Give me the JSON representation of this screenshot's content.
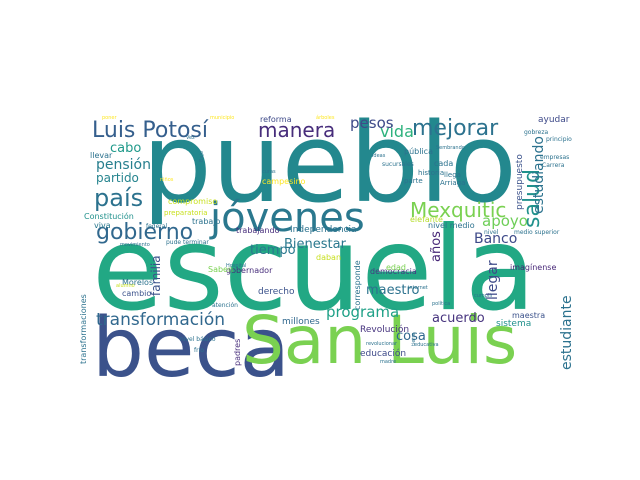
{
  "words": [
    {
      "text": "pueblo",
      "color": "#23888e",
      "orientation": "horizontal"
    },
    {
      "text": "escuela",
      "color": "#22a884",
      "orientation": "horizontal"
    },
    {
      "text": "beca",
      "color": "#3b528b",
      "orientation": "horizontal"
    },
    {
      "text": "San Luis",
      "color": "#7ad151",
      "orientation": "horizontal"
    },
    {
      "text": "jóvenes",
      "color": "#2a788e",
      "orientation": "horizontal"
    },
    {
      "text": "Luis Potosí",
      "color": "#355f8d",
      "orientation": "horizontal"
    },
    {
      "text": "manera",
      "color": "#472d7b",
      "orientation": "horizontal"
    },
    {
      "text": "mejorar",
      "color": "#2c728e",
      "orientation": "horizontal"
    },
    {
      "text": "gobierno",
      "color": "#31688e",
      "orientation": "horizontal"
    },
    {
      "text": "Mexquitic",
      "color": "#7ad151",
      "orientation": "horizontal"
    },
    {
      "text": "salud",
      "color": "#21918c",
      "orientation": "vertical"
    },
    {
      "text": "país",
      "color": "#2c728e",
      "orientation": "horizontal"
    },
    {
      "text": "transformación",
      "color": "#31688e",
      "orientation": "horizontal"
    },
    {
      "text": "programa",
      "color": "#1fa187",
      "orientation": "horizontal"
    },
    {
      "text": "Bienestar",
      "color": "#2a788e",
      "orientation": "horizontal"
    },
    {
      "text": "vida",
      "color": "#2db27d",
      "orientation": "horizontal"
    },
    {
      "text": "pesos",
      "color": "#3e4a89",
      "orientation": "horizontal"
    },
    {
      "text": "apoyo",
      "color": "#6ece58",
      "orientation": "horizontal"
    },
    {
      "text": "pensión",
      "color": "#277f8e",
      "orientation": "horizontal"
    },
    {
      "text": "partido",
      "color": "#25848e",
      "orientation": "horizontal"
    },
    {
      "text": "cabo",
      "color": "#1f998a",
      "orientation": "horizontal"
    },
    {
      "text": "Banco",
      "color": "#3e4a89",
      "orientation": "horizontal"
    },
    {
      "text": "estudiando",
      "color": "#2c728e",
      "orientation": "vertical"
    },
    {
      "text": "estudiante",
      "color": "#2c728e",
      "orientation": "vertical"
    },
    {
      "text": "años",
      "color": "#482878",
      "orientation": "vertical"
    },
    {
      "text": "llegar",
      "color": "#3e4a89",
      "orientation": "vertical"
    },
    {
      "text": "maestro",
      "color": "#2c728e",
      "orientation": "horizontal"
    },
    {
      "text": "cosa",
      "color": "#31688e",
      "orientation": "horizontal"
    },
    {
      "text": "acuerdo",
      "color": "#46337e",
      "orientation": "horizontal"
    },
    {
      "text": "tiempo",
      "color": "#2a788e",
      "orientation": "horizontal"
    },
    {
      "text": "familia",
      "color": "#3b528b",
      "orientation": "vertical"
    },
    {
      "text": "Independencia",
      "color": "#2c728e",
      "orientation": "horizontal"
    },
    {
      "text": "trabajando",
      "color": "#472d7b",
      "orientation": "horizontal"
    },
    {
      "text": "nivel medio",
      "color": "#2c728e",
      "orientation": "horizontal"
    },
    {
      "text": "ayudar",
      "color": "#3e4a89",
      "orientation": "horizontal"
    },
    {
      "text": "presupuesto",
      "color": "#3b528b",
      "orientation": "vertical"
    },
    {
      "text": "gobernador",
      "color": "#472d7b",
      "orientation": "horizontal"
    },
    {
      "text": "democracia",
      "color": "#453882",
      "orientation": "horizontal"
    },
    {
      "text": "derecho",
      "color": "#3b528b",
      "orientation": "horizontal"
    },
    {
      "text": "Revolución",
      "color": "#46337e",
      "orientation": "horizontal"
    },
    {
      "text": "educación",
      "color": "#3e4a89",
      "orientation": "horizontal"
    },
    {
      "text": "millones",
      "color": "#31688e",
      "orientation": "horizontal"
    },
    {
      "text": "padres",
      "color": "#472d7b",
      "orientation": "vertical"
    },
    {
      "text": "maestra",
      "color": "#3b528b",
      "orientation": "horizontal"
    },
    {
      "text": "sistema",
      "color": "#21918c",
      "orientation": "horizontal"
    },
    {
      "text": "imagínense",
      "color": "#482878",
      "orientation": "horizontal"
    },
    {
      "text": "reforma",
      "color": "#3e4a89",
      "orientation": "horizontal"
    },
    {
      "text": "trabajo",
      "color": "#2c728e",
      "orientation": "horizontal"
    },
    {
      "text": "Constitución",
      "color": "#21918c",
      "orientation": "horizontal"
    },
    {
      "text": "viva",
      "color": "#2a788e",
      "orientation": "horizontal"
    },
    {
      "text": "llevar",
      "color": "#2c728e",
      "orientation": "horizontal"
    },
    {
      "text": "Morelos",
      "color": "#2c728e",
      "orientation": "horizontal"
    },
    {
      "text": "cambio",
      "color": "#3b528b",
      "orientation": "horizontal"
    },
    {
      "text": "Saben",
      "color": "#7ad151",
      "orientation": "horizontal"
    },
    {
      "text": "edad",
      "color": "#7ad151",
      "orientation": "horizontal"
    },
    {
      "text": "daban",
      "color": "#c8e020",
      "orientation": "horizontal"
    },
    {
      "text": "campesino",
      "color": "#fde725",
      "orientation": "horizontal"
    },
    {
      "text": "elefante",
      "color": "#b5de2b",
      "orientation": "horizontal"
    },
    {
      "text": "corresponde",
      "color": "#2c728e",
      "orientation": "vertical"
    },
    {
      "text": "pública",
      "color": "#2c728e",
      "orientation": "horizontal"
    },
    {
      "text": "cada",
      "color": "#2c728e",
      "orientation": "horizontal"
    },
    {
      "text": "historia",
      "color": "#2c728e",
      "orientation": "horizontal"
    },
    {
      "text": "parte",
      "color": "#2c728e",
      "orientation": "horizontal"
    },
    {
      "text": "Arriaga",
      "color": "#2c728e",
      "orientation": "horizontal"
    },
    {
      "text": "llega",
      "color": "#2c728e",
      "orientation": "horizontal"
    },
    {
      "text": "sucursales",
      "color": "#2c728e",
      "orientation": "horizontal"
    },
    {
      "text": "empresas",
      "color": "#2c728e",
      "orientation": "horizontal"
    },
    {
      "text": "Carrera",
      "color": "#2c728e",
      "orientation": "horizontal"
    },
    {
      "text": "principio",
      "color": "#2c728e",
      "orientation": "horizontal"
    },
    {
      "text": "gobreza",
      "color": "#2c728e",
      "orientation": "horizontal"
    },
    {
      "text": "poner",
      "color": "#fde725",
      "orientation": "horizontal"
    },
    {
      "text": "municipio",
      "color": "#fde725",
      "orientation": "horizontal"
    },
    {
      "text": "árboles",
      "color": "#fde725",
      "orientation": "horizontal"
    },
    {
      "text": "Sembrando",
      "color": "#2c728e",
      "orientation": "horizontal"
    },
    {
      "text": "niños",
      "color": "#fde725",
      "orientation": "horizontal"
    },
    {
      "text": "curas",
      "color": "#2c728e",
      "orientation": "horizontal"
    },
    {
      "text": "compromiso",
      "color": "#c8e020",
      "orientation": "horizontal"
    },
    {
      "text": "preparatoria",
      "color": "#c8e020",
      "orientation": "horizontal"
    },
    {
      "text": "federal",
      "color": "#2c728e",
      "orientation": "horizontal"
    },
    {
      "text": "pude terminar",
      "color": "#2c728e",
      "orientation": "horizontal"
    },
    {
      "text": "movimiento",
      "color": "#2c728e",
      "orientation": "horizontal"
    },
    {
      "text": "Hospital",
      "color": "#2c728e",
      "orientation": "horizontal"
    },
    {
      "text": "atención",
      "color": "#2c728e",
      "orientation": "horizontal"
    },
    {
      "text": "nivel básico",
      "color": "#2c728e",
      "orientation": "horizontal"
    },
    {
      "text": "frío",
      "color": "#2c728e",
      "orientation": "horizontal"
    },
    {
      "text": "alumno",
      "color": "#c8e020",
      "orientation": "horizontal"
    },
    {
      "text": "transformaciones",
      "color": "#2c728e",
      "orientation": "vertical"
    },
    {
      "text": "internet",
      "color": "#2c728e",
      "orientation": "horizontal"
    },
    {
      "text": "política",
      "color": "#2c728e",
      "orientation": "horizontal"
    },
    {
      "text": "nivel",
      "color": "#2c728e",
      "orientation": "horizontal"
    },
    {
      "text": "medio superior",
      "color": "#2c728e",
      "orientation": "horizontal"
    },
    {
      "text": "cumplir",
      "color": "#2c728e",
      "orientation": "horizontal"
    },
    {
      "text": "revolucionar",
      "color": "#2c728e",
      "orientation": "horizontal"
    },
    {
      "text": "educativa",
      "color": "#2c728e",
      "orientation": "horizontal"
    },
    {
      "text": "madre",
      "color": "#2c728e",
      "orientation": "horizontal"
    },
    {
      "text": "Vez",
      "color": "#2c728e",
      "orientation": "horizontal"
    },
    {
      "text": "ideas",
      "color": "#2c728e",
      "orientation": "horizontal"
    },
    {
      "text": "tierra",
      "color": "#2c728e",
      "orientation": "vertical"
    },
    {
      "text": "Bajo",
      "color": "#2c728e",
      "orientation": "vertical"
    }
  ]
}
